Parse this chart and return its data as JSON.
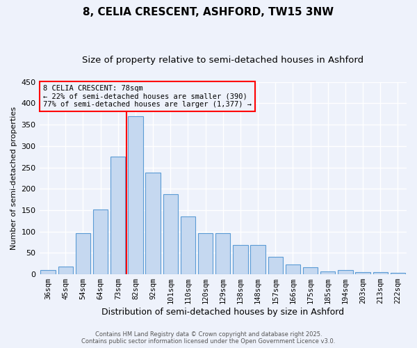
{
  "title": "8, CELIA CRESCENT, ASHFORD, TW15 3NW",
  "subtitle": "Size of property relative to semi-detached houses in Ashford",
  "xlabel": "Distribution of semi-detached houses by size in Ashford",
  "ylabel": "Number of semi-detached properties",
  "bin_labels": [
    "36sqm",
    "45sqm",
    "54sqm",
    "64sqm",
    "73sqm",
    "82sqm",
    "92sqm",
    "101sqm",
    "110sqm",
    "120sqm",
    "129sqm",
    "138sqm",
    "148sqm",
    "157sqm",
    "166sqm",
    "175sqm",
    "185sqm",
    "194sqm",
    "203sqm",
    "213sqm",
    "222sqm"
  ],
  "bar_heights": [
    10,
    18,
    97,
    152,
    275,
    370,
    238,
    187,
    135,
    96,
    96,
    68,
    68,
    41,
    23,
    17,
    6,
    10,
    5,
    5,
    3
  ],
  "bar_color": "#c5d8f0",
  "bar_edge_color": "#5b9bd5",
  "bg_color": "#eef2fb",
  "grid_color": "#ffffff",
  "vline_color": "red",
  "vline_x_index": 5,
  "annotation_title": "8 CELIA CRESCENT: 78sqm",
  "annotation_line1": "← 22% of semi-detached houses are smaller (390)",
  "annotation_line2": "77% of semi-detached houses are larger (1,377) →",
  "annotation_box_color": "red",
  "ylim": [
    0,
    450
  ],
  "yticks": [
    0,
    50,
    100,
    150,
    200,
    250,
    300,
    350,
    400,
    450
  ],
  "footer1": "Contains HM Land Registry data © Crown copyright and database right 2025.",
  "footer2": "Contains public sector information licensed under the Open Government Licence v3.0.",
  "title_fontsize": 11,
  "subtitle_fontsize": 9.5
}
